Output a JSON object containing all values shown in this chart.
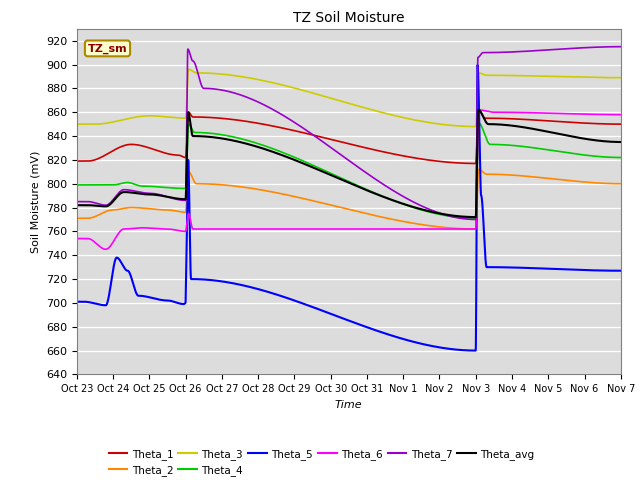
{
  "title": "TZ Soil Moisture",
  "xlabel": "Time",
  "ylabel": "Soil Moisture (mV)",
  "ylim": [
    640,
    930
  ],
  "yticks": [
    640,
    660,
    680,
    700,
    720,
    740,
    760,
    780,
    800,
    820,
    840,
    860,
    880,
    900,
    920
  ],
  "bg_color": "#dcdcdc",
  "legend_label": "TZ_sm",
  "x_tick_labels": [
    "Oct 23",
    "Oct 24",
    "Oct 25",
    "Oct 26",
    "Oct 27",
    "Oct 28",
    "Oct 29",
    "Oct 30",
    "Oct 31",
    "Nov 1",
    "Nov 2",
    "Nov 3",
    "Nov 4",
    "Nov 5",
    "Nov 6",
    "Nov 7"
  ],
  "colors": {
    "Theta_1": "#cc0000",
    "Theta_2": "#ff8800",
    "Theta_3": "#cccc00",
    "Theta_4": "#00cc00",
    "Theta_5": "#0000ff",
    "Theta_6": "#ff00ff",
    "Theta_7": "#9900cc",
    "Theta_avg": "#000000"
  }
}
